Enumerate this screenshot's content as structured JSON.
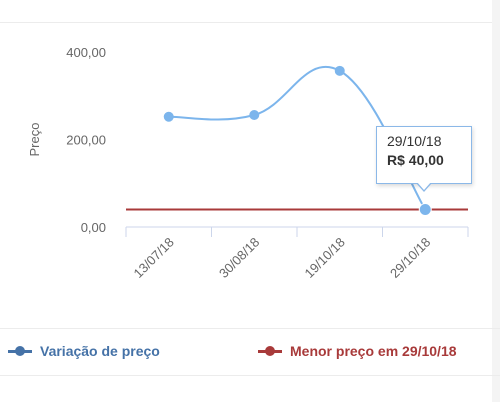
{
  "chart_data": {
    "type": "line",
    "ylabel": "Preço",
    "ylim": [
      0,
      400
    ],
    "y_ticks": [
      {
        "value": 0,
        "label": "0,00"
      },
      {
        "value": 200,
        "label": "200,00"
      },
      {
        "value": 400,
        "label": "400,00"
      }
    ],
    "categories": [
      "13/07/18",
      "30/08/18",
      "19/10/18",
      "29/10/18"
    ],
    "series": [
      {
        "name": "Variação de preço",
        "color": "#7cb5ec",
        "values": [
          252,
          256,
          357,
          40
        ]
      }
    ],
    "reference_line": {
      "name": "Menor preço em 29/10/18",
      "value": 40,
      "color": "#a83a3a"
    },
    "grid": false,
    "legend_position": "bottom",
    "tooltip": {
      "category": "29/10/18",
      "value_label": "R$ 40,00"
    }
  },
  "legend": {
    "series_label": "Variação de preço",
    "series_color": "#4572a7",
    "series_marker_color": "#4572a7",
    "reference_label": "Menor preço em 29/10/18",
    "reference_color": "#a83a3a"
  }
}
